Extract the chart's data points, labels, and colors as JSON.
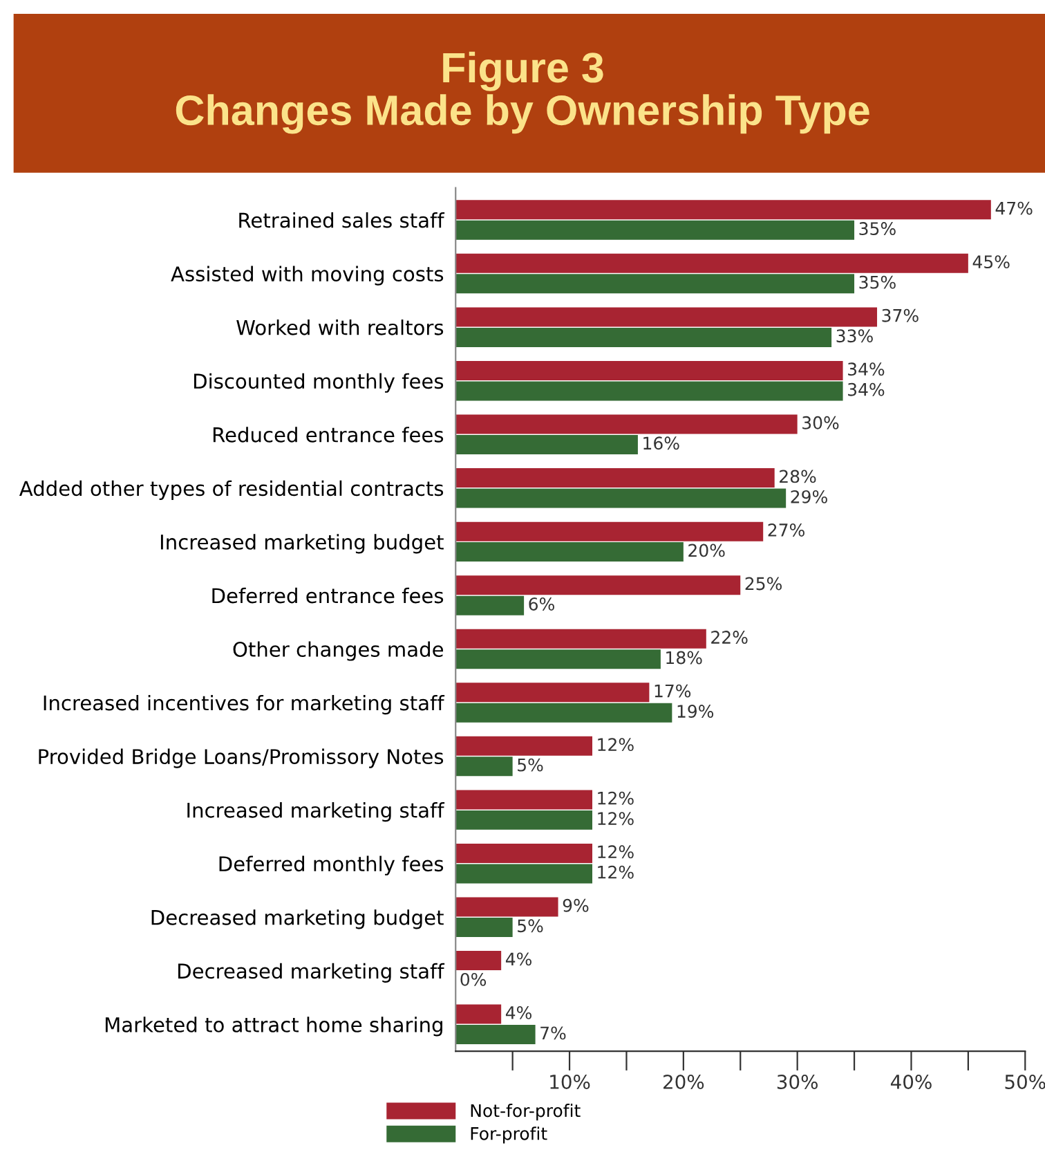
{
  "chart_data": {
    "type": "bar",
    "orientation": "horizontal",
    "title": "Figure 3\nChanges Made by Ownership Type",
    "categories": [
      "Retrained sales staff",
      "Assisted with moving costs",
      "Worked with realtors",
      "Discounted monthly fees",
      "Reduced entrance fees",
      "Added other types of residential contracts",
      "Increased marketing budget",
      "Deferred entrance fees",
      "Other changes made",
      "Increased incentives for marketing staff",
      "Provided Bridge Loans/Promissory Notes",
      "Increased marketing staff",
      "Deferred monthly fees",
      "Decreased marketing budget",
      "Decreased marketing staff",
      "Marketed to attract home sharing"
    ],
    "series": [
      {
        "name": "Not-for-profit",
        "color": "#a82432",
        "values": [
          47,
          45,
          37,
          34,
          30,
          28,
          27,
          25,
          22,
          17,
          12,
          12,
          12,
          9,
          4,
          4
        ],
        "value_labels": [
          "47%",
          "45%",
          "37%",
          "34%",
          "30%",
          "28%",
          "27%",
          "25%",
          "22%",
          "17%",
          "12%",
          "12%",
          "12%",
          "9%",
          "4%",
          "4%"
        ]
      },
      {
        "name": "For-profit",
        "color": "#356b35",
        "values": [
          35,
          35,
          33,
          34,
          16,
          29,
          20,
          6,
          18,
          19,
          5,
          12,
          12,
          5,
          0,
          7
        ],
        "value_labels": [
          "35%",
          "35%",
          "33%",
          "34%",
          "16%",
          "29%",
          "20%",
          "6%",
          "18%",
          "19%",
          "5%",
          "12%",
          "12%",
          "5%",
          "0%",
          "7%"
        ]
      }
    ],
    "xlim": [
      0,
      50
    ],
    "xticks": [
      {
        "value": 5,
        "label": null
      },
      {
        "value": 10,
        "label": "10%"
      },
      {
        "value": 15,
        "label": null
      },
      {
        "value": 20,
        "label": "20%"
      },
      {
        "value": 25,
        "label": null
      },
      {
        "value": 30,
        "label": "30%"
      },
      {
        "value": 35,
        "label": null
      },
      {
        "value": 40,
        "label": "40%"
      },
      {
        "value": 45,
        "label": null
      },
      {
        "value": 50,
        "label": "50%"
      }
    ],
    "grid": false,
    "legend": "bottom"
  }
}
